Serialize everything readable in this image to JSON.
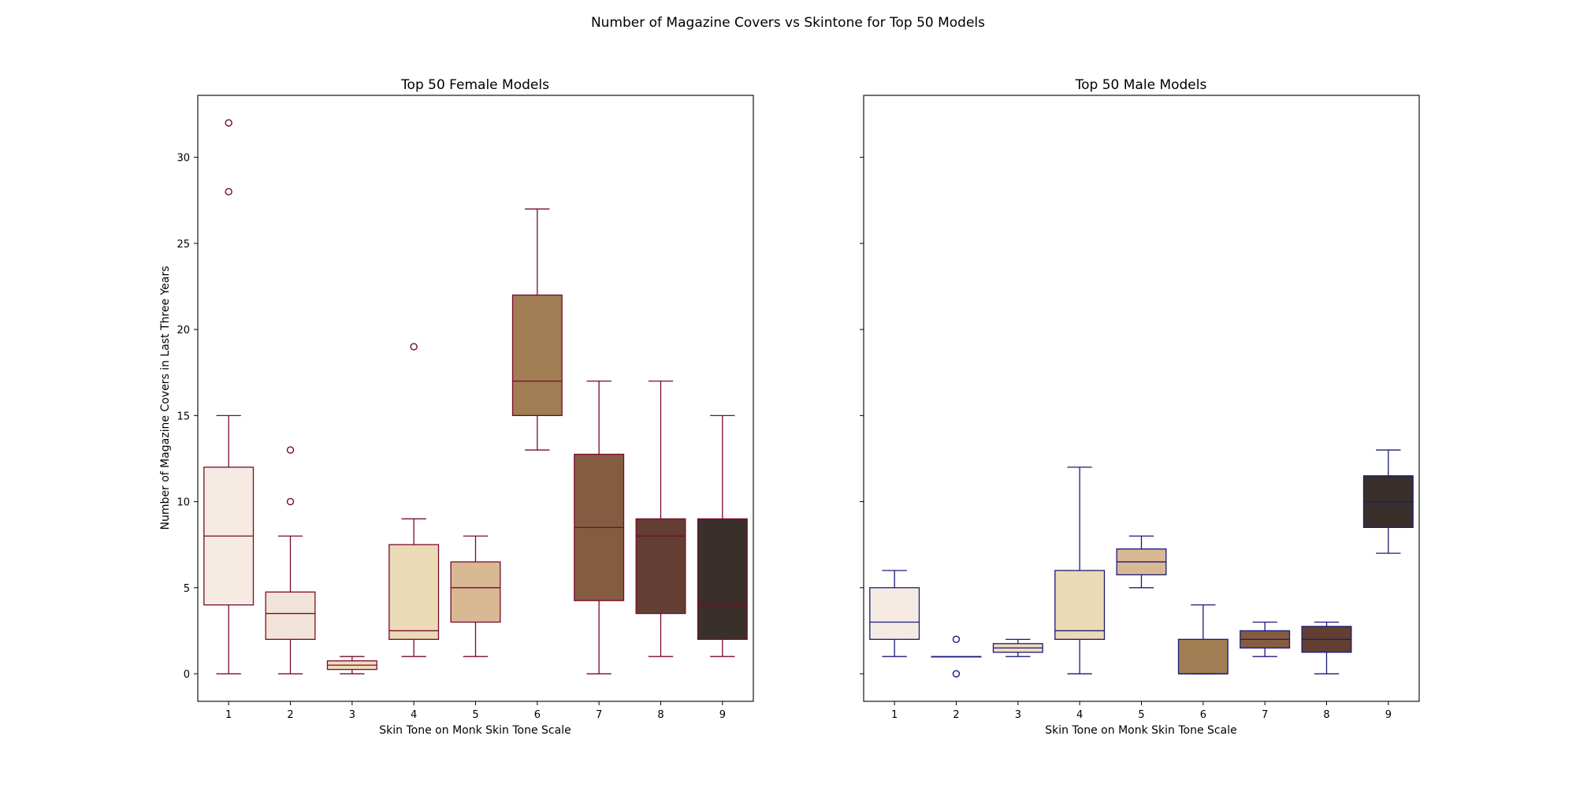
{
  "figure": {
    "suptitle": "Number of Magazine Covers vs Skintone for Top 50 Models",
    "ylabel": "Number of Magazine Covers in Last Three Years",
    "fill_colors": [
      "#f5ebe3",
      "#f2e4d8",
      "#f0dcc0",
      "#eadab5",
      "#d8b994",
      "#a07d53",
      "#855c42",
      "#623f32",
      "#3a302b"
    ],
    "yticks": [
      0,
      5,
      10,
      15,
      20,
      25,
      30
    ],
    "ylim": [
      -1.6,
      33.6
    ]
  },
  "chart_data": [
    {
      "type": "box",
      "title": "Top 50 Female Models",
      "xlabel": "Skin Tone on Monk Skin Tone Scale",
      "categories": [
        "1",
        "2",
        "3",
        "4",
        "5",
        "6",
        "7",
        "8",
        "9"
      ],
      "edge_color": "#7a0a2a",
      "boxes": [
        {
          "whislo": 0,
          "q1": 4,
          "med": 8,
          "q3": 12,
          "whishi": 15,
          "fliers": [
            28,
            32
          ]
        },
        {
          "whislo": 0,
          "q1": 2,
          "med": 3.5,
          "q3": 4.75,
          "whishi": 8,
          "fliers": [
            10,
            13
          ]
        },
        {
          "whislo": 0,
          "q1": 0.25,
          "med": 0.5,
          "q3": 0.75,
          "whishi": 1,
          "fliers": []
        },
        {
          "whislo": 1,
          "q1": 2,
          "med": 2.5,
          "q3": 7.5,
          "whishi": 9,
          "fliers": [
            19
          ]
        },
        {
          "whislo": 1,
          "q1": 3,
          "med": 5,
          "q3": 6.5,
          "whishi": 8,
          "fliers": []
        },
        {
          "whislo": 13,
          "q1": 15,
          "med": 17,
          "q3": 22,
          "whishi": 27,
          "fliers": []
        },
        {
          "whislo": 0,
          "q1": 4.25,
          "med": 8.5,
          "q3": 12.75,
          "whishi": 17,
          "fliers": []
        },
        {
          "whislo": 1,
          "q1": 3.5,
          "med": 8,
          "q3": 9,
          "whishi": 17,
          "fliers": []
        },
        {
          "whislo": 1,
          "q1": 2,
          "med": 4,
          "q3": 9,
          "whishi": 15,
          "fliers": []
        }
      ]
    },
    {
      "type": "box",
      "title": "Top 50 Male Models",
      "xlabel": "Skin Tone on Monk Skin Tone Scale",
      "categories": [
        "1",
        "2",
        "3",
        "4",
        "5",
        "6",
        "7",
        "8",
        "9"
      ],
      "edge_color": "#1a1a7a",
      "boxes": [
        {
          "whislo": 1,
          "q1": 2,
          "med": 3,
          "q3": 5,
          "whishi": 6,
          "fliers": []
        },
        {
          "whislo": 1,
          "q1": 1,
          "med": 1,
          "q3": 1,
          "whishi": 1,
          "fliers": [
            0,
            2
          ]
        },
        {
          "whislo": 1,
          "q1": 1.25,
          "med": 1.5,
          "q3": 1.75,
          "whishi": 2,
          "fliers": []
        },
        {
          "whislo": 0,
          "q1": 2,
          "med": 2.5,
          "q3": 6,
          "whishi": 12,
          "fliers": []
        },
        {
          "whislo": 5,
          "q1": 5.75,
          "med": 6.5,
          "q3": 7.25,
          "whishi": 8,
          "fliers": []
        },
        {
          "whislo": 0,
          "q1": 0,
          "med": 0,
          "q3": 2,
          "whishi": 4,
          "fliers": []
        },
        {
          "whislo": 1,
          "q1": 1.5,
          "med": 2,
          "q3": 2.5,
          "whishi": 3,
          "fliers": []
        },
        {
          "whislo": 0,
          "q1": 1.25,
          "med": 2,
          "q3": 2.75,
          "whishi": 3,
          "fliers": []
        },
        {
          "whislo": 7,
          "q1": 8.5,
          "med": 10,
          "q3": 11.5,
          "whishi": 13,
          "fliers": []
        }
      ]
    }
  ]
}
